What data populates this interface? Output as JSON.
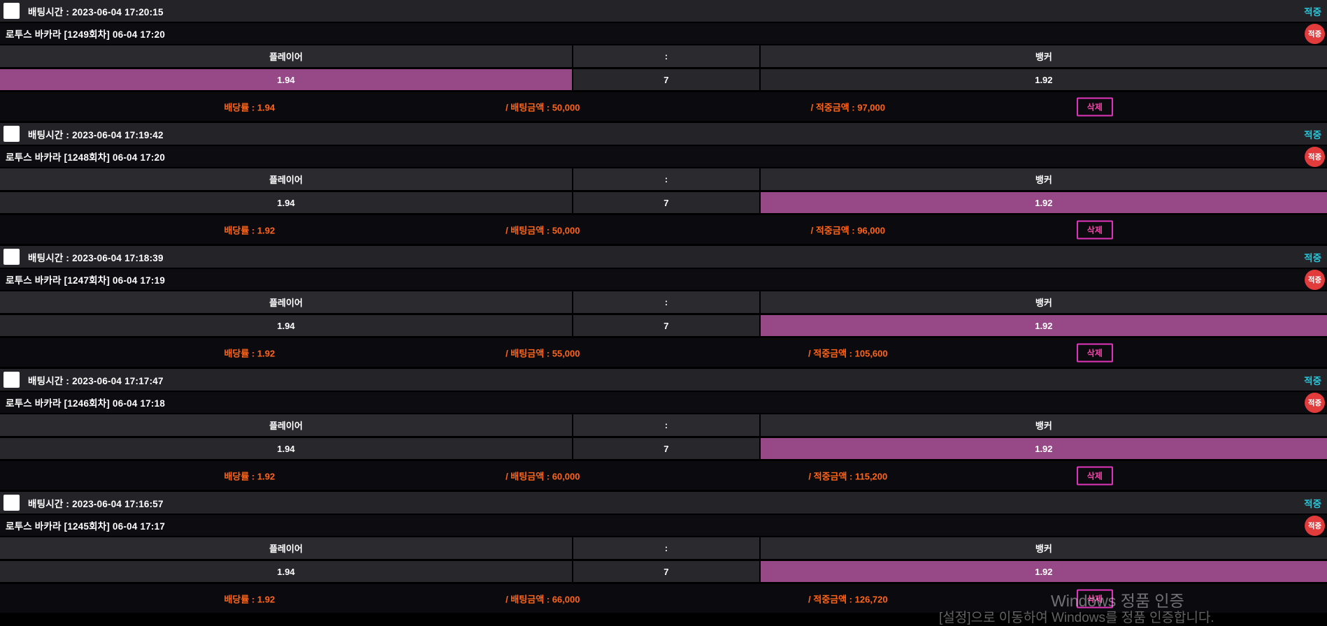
{
  "labels": {
    "hit_text": "적중",
    "hit_badge": "적중",
    "delete": "삭제"
  },
  "table_header": {
    "player": "플레이어",
    "colon": ":",
    "banker": "뱅커"
  },
  "colors": {
    "selected_bet_highlight": "#974987",
    "hit_text_cyan": "#2bc3d8",
    "hit_badge_red": "#e23b3b",
    "summary_orange": "#ff6418",
    "delete_button_magenta": "#e235bd"
  },
  "bets": [
    {
      "bet_time_label": "배팅시간 : 2023-06-04 17:20:15",
      "game_title": "로투스 바카라  [1249회차]  06-04 17:20",
      "player_odds": "1.94",
      "tie_value": "7",
      "banker_odds": "1.92",
      "selected": "player",
      "odds_label": "배당률 : 1.94",
      "bet_amount_label": "/ 배팅금액 : 50,000",
      "win_amount_label": "/ 적중금액 : 97,000"
    },
    {
      "bet_time_label": "배팅시간 : 2023-06-04 17:19:42",
      "game_title": "로투스 바카라  [1248회차]  06-04 17:20",
      "player_odds": "1.94",
      "tie_value": "7",
      "banker_odds": "1.92",
      "selected": "banker",
      "odds_label": "배당률 : 1.92",
      "bet_amount_label": "/ 배팅금액 : 50,000",
      "win_amount_label": "/ 적중금액 : 96,000"
    },
    {
      "bet_time_label": "배팅시간 : 2023-06-04 17:18:39",
      "game_title": "로투스 바카라  [1247회차]  06-04 17:19",
      "player_odds": "1.94",
      "tie_value": "7",
      "banker_odds": "1.92",
      "selected": "banker",
      "odds_label": "배당률 : 1.92",
      "bet_amount_label": "/ 배팅금액 : 55,000",
      "win_amount_label": "/ 적중금액 : 105,600"
    },
    {
      "bet_time_label": "배팅시간 : 2023-06-04 17:17:47",
      "game_title": "로투스 바카라  [1246회차]  06-04 17:18",
      "player_odds": "1.94",
      "tie_value": "7",
      "banker_odds": "1.92",
      "selected": "banker",
      "odds_label": "배당률 : 1.92",
      "bet_amount_label": "/ 배팅금액 : 60,000",
      "win_amount_label": "/ 적중금액 : 115,200"
    },
    {
      "bet_time_label": "배팅시간 : 2023-06-04 17:16:57",
      "game_title": "로투스 바카라  [1245회차]  06-04 17:17",
      "player_odds": "1.94",
      "tie_value": "7",
      "banker_odds": "1.92",
      "selected": "banker",
      "odds_label": "배당률 : 1.92",
      "bet_amount_label": "/ 배팅금액 : 66,000",
      "win_amount_label": "/ 적중금액 : 126,720"
    }
  ],
  "watermark": {
    "line1": "Windows 정품 인증",
    "line2": "[설정]으로 이동하여 Windows를 정품 인증합니다."
  }
}
